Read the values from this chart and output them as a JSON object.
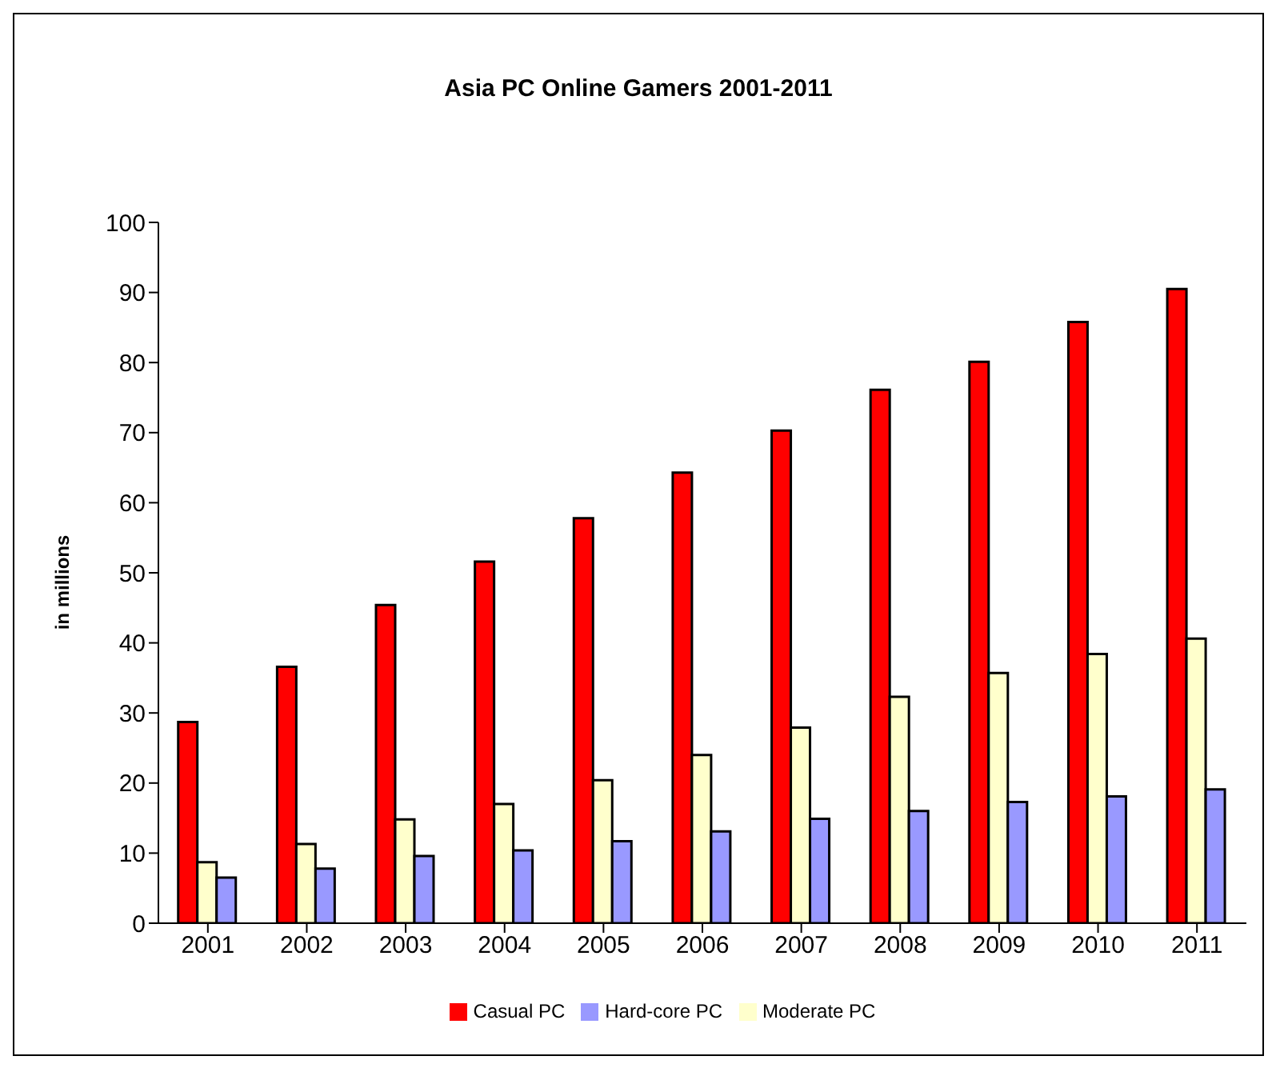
{
  "chart_data": {
    "type": "bar",
    "title": "Asia PC Online Gamers 2001-2011",
    "ylabel": "in millions",
    "categories": [
      "2001",
      "2002",
      "2003",
      "2004",
      "2005",
      "2006",
      "2007",
      "2008",
      "2009",
      "2010",
      "2011"
    ],
    "series": [
      {
        "name": "Casual PC",
        "color": "#ff0000",
        "values": [
          28.7,
          36.6,
          45.4,
          51.6,
          57.8,
          64.3,
          70.3,
          76.1,
          80.1,
          85.8,
          90.5
        ]
      },
      {
        "name": "Moderate PC",
        "color": "#ffffcc",
        "values": [
          8.7,
          11.3,
          14.8,
          17.0,
          20.4,
          24.0,
          27.9,
          32.3,
          35.7,
          38.4,
          40.6
        ]
      },
      {
        "name": "Hard-core PC",
        "color": "#9999ff",
        "values": [
          6.5,
          7.8,
          9.6,
          10.4,
          11.7,
          13.1,
          14.9,
          16.0,
          17.3,
          18.1,
          19.1
        ]
      }
    ],
    "ylim": [
      0,
      100
    ],
    "yticks": [
      0,
      10,
      20,
      30,
      40,
      50,
      60,
      70,
      80,
      90,
      100
    ],
    "grid": false,
    "legend": "bottom"
  }
}
